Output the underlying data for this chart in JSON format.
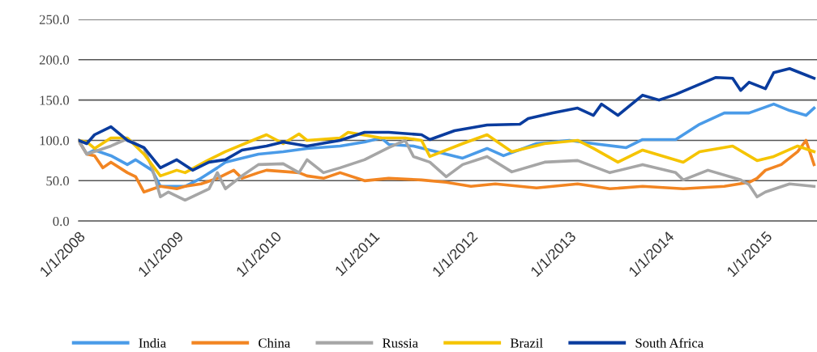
{
  "chart_data": {
    "type": "line",
    "xlim": [
      "2008-01-01",
      "2015-07-12"
    ],
    "xticks": [
      {
        "value": "2008-01-01",
        "label": "1/1/2008"
      },
      {
        "value": "2009-01-01",
        "label": "1/1/2009"
      },
      {
        "value": "2010-01-01",
        "label": "1/1/2010"
      },
      {
        "value": "2011-01-01",
        "label": "1/1/2011"
      },
      {
        "value": "2012-01-01",
        "label": "1/1/2012"
      },
      {
        "value": "2013-01-01",
        "label": "1/1/2013"
      },
      {
        "value": "2014-01-01",
        "label": "1/1/2014"
      },
      {
        "value": "2015-01-01",
        "label": "1/1/2015"
      }
    ],
    "ylim": [
      0,
      250
    ],
    "yticks": [
      {
        "value": 0,
        "label": "0.0"
      },
      {
        "value": 50,
        "label": "50.0"
      },
      {
        "value": 100,
        "label": "100.0"
      },
      {
        "value": 150,
        "label": "150.0"
      },
      {
        "value": 200,
        "label": "200.0"
      },
      {
        "value": 250,
        "label": "250.0"
      }
    ],
    "grid": "y",
    "legend": "bottom",
    "marker": "none",
    "line_style": "solid",
    "series": [
      {
        "name": "India",
        "color": "#4a9be8",
        "x": [
          "2008-01",
          "2008-02",
          "2008-03",
          "2008-05",
          "2008-07",
          "2008-08",
          "2008-10",
          "2008-11",
          "2009-02",
          "2009-04",
          "2009-06",
          "2009-07",
          "2009-11",
          "2010-02",
          "2010-05",
          "2010-09",
          "2010-12",
          "2011-02",
          "2011-03",
          "2011-06",
          "2011-12",
          "2012-03",
          "2012-05",
          "2012-09",
          "2013-01",
          "2013-04",
          "2013-08",
          "2013-10",
          "2014-02",
          "2014-05",
          "2014-08",
          "2014-11",
          "2015-02",
          "2015-04",
          "2015-06",
          "2015-07"
        ],
        "values": [
          100,
          83,
          88,
          81,
          70,
          76,
          63,
          43,
          43,
          53,
          66,
          73,
          83,
          86,
          90,
          93,
          98,
          103,
          95,
          93,
          78,
          90,
          81,
          96,
          100,
          96,
          91,
          101,
          101,
          120,
          134,
          134,
          145,
          137,
          131,
          140
        ]
      },
      {
        "name": "China",
        "color": "#f28522",
        "x": [
          "2008-01",
          "2008-02",
          "2008-03",
          "2008-04",
          "2008-05",
          "2008-07",
          "2008-08",
          "2008-09",
          "2008-11",
          "2009-01",
          "2009-02",
          "2009-04",
          "2009-06",
          "2009-08",
          "2009-09",
          "2009-11",
          "2009-12",
          "2010-04",
          "2010-05",
          "2010-07",
          "2010-09",
          "2010-12",
          "2011-03",
          "2011-07",
          "2011-10",
          "2012-01",
          "2012-04",
          "2012-09",
          "2013-02",
          "2013-06",
          "2013-10",
          "2014-03",
          "2014-08",
          "2014-11",
          "2014-12",
          "2015-01",
          "2015-03",
          "2015-05",
          "2015-06",
          "2015-07"
        ],
        "values": [
          100,
          83,
          81,
          66,
          73,
          60,
          55,
          36,
          43,
          40,
          43,
          46,
          53,
          63,
          53,
          60,
          63,
          60,
          56,
          53,
          60,
          50,
          53,
          51,
          48,
          43,
          46,
          41,
          46,
          40,
          43,
          40,
          43,
          48,
          53,
          63,
          70,
          86,
          100,
          70
        ]
      },
      {
        "name": "Russia",
        "color": "#a6a6a6",
        "x": [
          "2008-01",
          "2008-02",
          "2008-05",
          "2008-07",
          "2008-09",
          "2008-10",
          "2008-11",
          "2008-12",
          "2009-02",
          "2009-05",
          "2009-06",
          "2009-07",
          "2009-09",
          "2009-11",
          "2010-02",
          "2010-04",
          "2010-05",
          "2010-07",
          "2010-09",
          "2010-12",
          "2011-03",
          "2011-05",
          "2011-06",
          "2011-08",
          "2011-10",
          "2011-12",
          "2012-03",
          "2012-06",
          "2012-10",
          "2013-02",
          "2013-06",
          "2013-10",
          "2014-02",
          "2014-03",
          "2014-06",
          "2014-10",
          "2014-11",
          "2014-12",
          "2015-01",
          "2015-04",
          "2015-07"
        ],
        "values": [
          100,
          83,
          93,
          102,
          90,
          66,
          30,
          36,
          26,
          40,
          60,
          40,
          56,
          70,
          71,
          60,
          76,
          60,
          66,
          76,
          91,
          100,
          80,
          73,
          55,
          70,
          80,
          61,
          73,
          75,
          60,
          70,
          60,
          51,
          63,
          51,
          45,
          30,
          36,
          46,
          43
        ]
      },
      {
        "name": "Brazil",
        "color": "#f5c400",
        "x": [
          "2008-01",
          "2008-02",
          "2008-03",
          "2008-05",
          "2008-07",
          "2008-09",
          "2008-11",
          "2009-01",
          "2009-02",
          "2009-05",
          "2009-07",
          "2009-11",
          "2009-12",
          "2010-02",
          "2010-04",
          "2010-05",
          "2010-09",
          "2010-10",
          "2011-02",
          "2011-05",
          "2011-07",
          "2011-08",
          "2011-12",
          "2012-03",
          "2012-06",
          "2012-10",
          "2013-02",
          "2013-04",
          "2013-07",
          "2013-10",
          "2014-03",
          "2014-05",
          "2014-09",
          "2014-12",
          "2015-02",
          "2015-05",
          "2015-07"
        ],
        "values": [
          100,
          98,
          90,
          103,
          103,
          83,
          56,
          63,
          60,
          76,
          86,
          103,
          107,
          96,
          108,
          100,
          103,
          110,
          103,
          103,
          100,
          80,
          96,
          107,
          86,
          96,
          100,
          90,
          73,
          88,
          73,
          86,
          93,
          75,
          80,
          93,
          86
        ]
      },
      {
        "name": "South Africa",
        "color": "#0a3c9e",
        "x": [
          "2008-01",
          "2008-02",
          "2008-03",
          "2008-05",
          "2008-07",
          "2008-09",
          "2008-11",
          "2009-01",
          "2009-03",
          "2009-05",
          "2009-07",
          "2009-09",
          "2009-12",
          "2010-02",
          "2010-05",
          "2010-09",
          "2010-12",
          "2011-03",
          "2011-07",
          "2011-08",
          "2011-11",
          "2012-03",
          "2012-07",
          "2012-08",
          "2012-11",
          "2013-02",
          "2013-04",
          "2013-05",
          "2013-07",
          "2013-10",
          "2013-12",
          "2014-02",
          "2014-07",
          "2014-09",
          "2014-10",
          "2014-11",
          "2015-01",
          "2015-02",
          "2015-04",
          "2015-06",
          "2015-07"
        ],
        "values": [
          100,
          96,
          107,
          117,
          100,
          91,
          66,
          76,
          63,
          73,
          76,
          88,
          93,
          98,
          93,
          100,
          110,
          110,
          107,
          101,
          112,
          119,
          120,
          127,
          134,
          140,
          131,
          145,
          131,
          156,
          150,
          157,
          178,
          177,
          162,
          172,
          164,
          184,
          189,
          181,
          177
        ]
      }
    ]
  }
}
